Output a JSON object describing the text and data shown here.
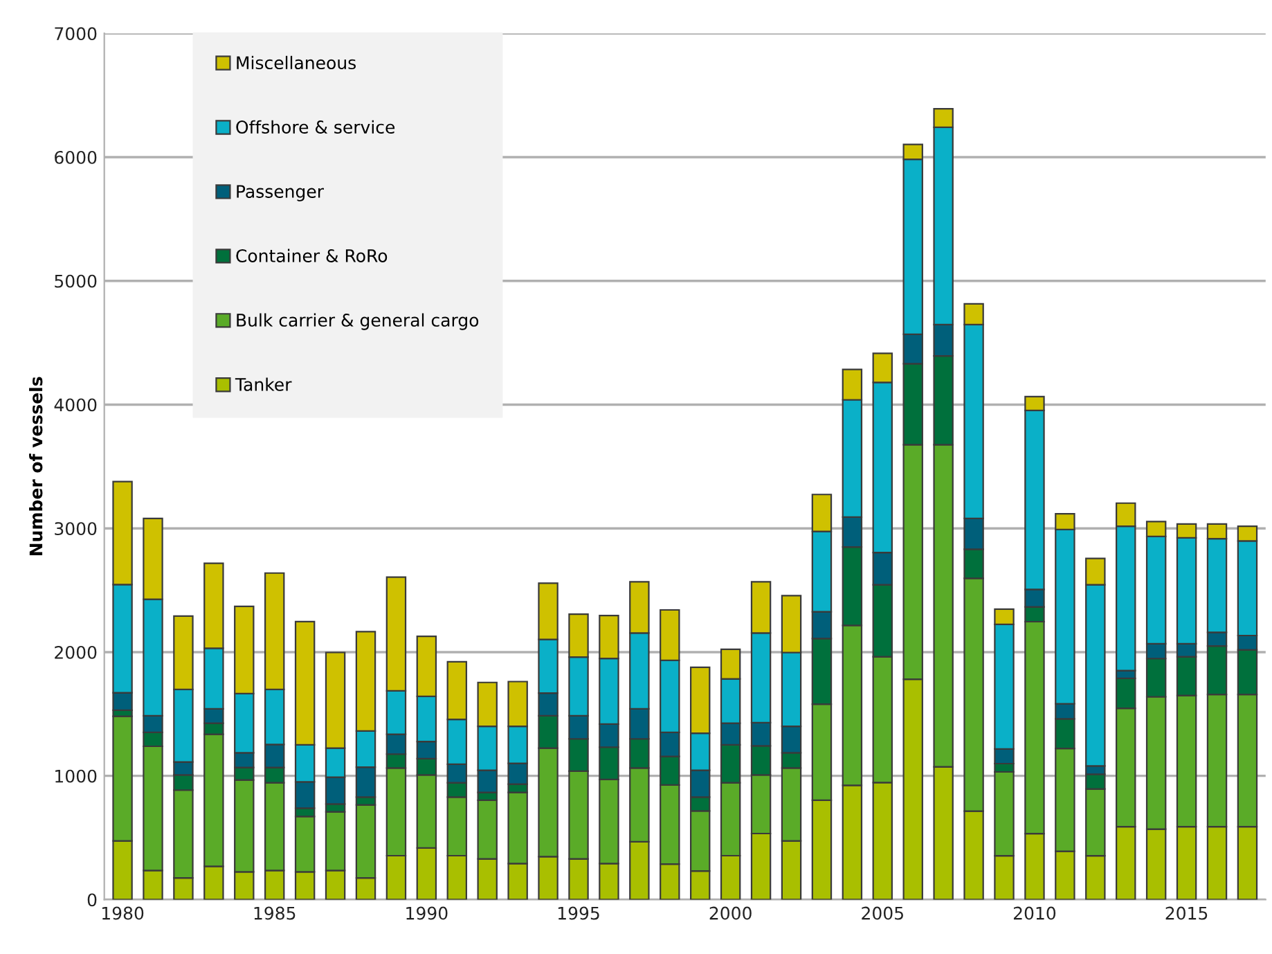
{
  "chart_data": {
    "type": "bar",
    "stacked": true,
    "ylabel": "Number of vessels",
    "x": [
      1980,
      1981,
      1982,
      1983,
      1984,
      1985,
      1986,
      1987,
      1988,
      1989,
      1990,
      1991,
      1992,
      1993,
      1994,
      1995,
      1996,
      1997,
      1998,
      1999,
      2000,
      2001,
      2002,
      2003,
      2004,
      2005,
      2006,
      2007,
      2008,
      2009,
      2010,
      2011,
      2012,
      2013,
      2014,
      2015,
      2016,
      2017
    ],
    "xlim": [
      1979.4,
      2017.6
    ],
    "xticks": [
      1980,
      1985,
      1990,
      1995,
      2000,
      2005,
      2010,
      2015
    ],
    "ylim": [
      0,
      7000
    ],
    "yticks": [
      0,
      1000,
      2000,
      3000,
      4000,
      5000,
      6000,
      7000
    ],
    "grid": "y",
    "legend": "top left",
    "series": [
      {
        "name": "Tanker",
        "color": "#a9bf00",
        "values": [
          474,
          235,
          175,
          269,
          224,
          235,
          224,
          235,
          175,
          355,
          418,
          355,
          329,
          291,
          347,
          329,
          291,
          467,
          287,
          231,
          355,
          534,
          474,
          803,
          924,
          946,
          1781,
          1073,
          715,
          354,
          533,
          391,
          354,
          589,
          570,
          589,
          589,
          589
        ]
      },
      {
        "name": "Bulk carrier & general cargo",
        "color": "#5aab28",
        "values": [
          1008,
          1004,
          710,
          1067,
          743,
          709,
          448,
          474,
          590,
          709,
          590,
          474,
          474,
          575,
          877,
          709,
          680,
          597,
          639,
          486,
          589,
          474,
          590,
          776,
          1292,
          1017,
          1895,
          2603,
          1881,
          678,
          1713,
          831,
          540,
          957,
          1069,
          1061,
          1069,
          1069
        ]
      },
      {
        "name": "Container & RoRo",
        "color": "#00703c",
        "values": [
          48,
          112,
          123,
          90,
          101,
          124,
          67,
          64,
          64,
          112,
          131,
          115,
          63,
          67,
          262,
          261,
          261,
          235,
          231,
          112,
          307,
          235,
          123,
          530,
          634,
          581,
          654,
          717,
          235,
          67,
          119,
          238,
          119,
          242,
          309,
          313,
          391,
          361
        ]
      },
      {
        "name": "Passenger",
        "color": "#005f7a",
        "values": [
          142,
          135,
          104,
          116,
          119,
          186,
          213,
          216,
          242,
          160,
          138,
          150,
          179,
          168,
          183,
          187,
          187,
          243,
          194,
          216,
          175,
          187,
          213,
          217,
          242,
          261,
          239,
          254,
          250,
          119,
          142,
          123,
          67,
          63,
          119,
          104,
          111,
          115
        ]
      },
      {
        "name": "Offshore & service",
        "color": "#0ab0c8",
        "values": [
          874,
          941,
          587,
          489,
          478,
          445,
          299,
          235,
          292,
          351,
          366,
          362,
          355,
          299,
          433,
          474,
          530,
          612,
          583,
          299,
          358,
          724,
          597,
          649,
          947,
          1375,
          1414,
          1594,
          1566,
          1006,
          1446,
          1408,
          1464,
          1166,
          868,
          857,
          757,
          764
        ]
      },
      {
        "name": "Miscellaneous",
        "color": "#cfc100",
        "values": [
          832,
          653,
          593,
          687,
          705,
          940,
          996,
          773,
          802,
          919,
          485,
          466,
          355,
          362,
          455,
          347,
          347,
          414,
          407,
          534,
          239,
          414,
          459,
          299,
          246,
          235,
          120,
          150,
          168,
          123,
          112,
          127,
          213,
          187,
          120,
          112,
          119,
          119
        ]
      }
    ]
  }
}
